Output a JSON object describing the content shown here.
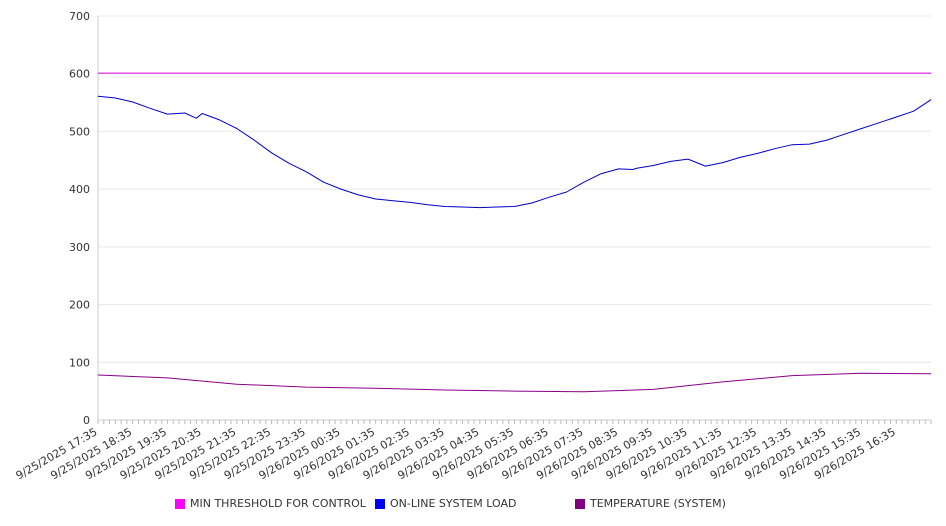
{
  "chart_data": {
    "type": "line",
    "title": "",
    "xlabel": "",
    "ylabel": "",
    "ylim": [
      0,
      700
    ],
    "y_ticks": [
      0,
      100,
      200,
      300,
      400,
      500,
      600,
      700
    ],
    "grid": true,
    "legend_position": "bottom",
    "x_tick_labels": [
      "9/25/2025 17:35",
      "9/25/2025 18:35",
      "9/25/2025 19:35",
      "9/25/2025 20:35",
      "9/25/2025 21:35",
      "9/25/2025 22:35",
      "9/25/2025 23:35",
      "9/26/2025 00:35",
      "9/26/2025 01:35",
      "9/26/2025 02:35",
      "9/26/2025 03:35",
      "9/26/2025 04:35",
      "9/26/2025 05:35",
      "9/26/2025 06:35",
      "9/26/2025 07:35",
      "9/26/2025 08:35",
      "9/26/2025 09:35",
      "9/26/2025 10:35",
      "9/26/2025 11:35",
      "9/26/2025 12:35",
      "9/26/2025 13:35",
      "9/26/2025 14:35",
      "9/26/2025 15:35",
      "9/26/2025 16:35"
    ],
    "series": [
      {
        "name": "MIN THRESHOLD FOR CONTROL",
        "color": "#dd00dd",
        "legend_color": "#ff00ff",
        "x": [
          "9/25/2025 17:35",
          "9/26/2025 17:35"
        ],
        "values": [
          601,
          601
        ]
      },
      {
        "name": "ON-LINE SYSTEM LOAD",
        "color": "#0000cc",
        "legend_color": "#0000ff",
        "x": [
          "9/25/2025 17:35",
          "9/25/2025 18:05",
          "9/25/2025 18:35",
          "9/25/2025 19:05",
          "9/25/2025 19:35",
          "9/25/2025 20:05",
          "9/25/2025 20:25",
          "9/25/2025 20:35",
          "9/25/2025 21:05",
          "9/25/2025 21:35",
          "9/25/2025 22:05",
          "9/25/2025 22:35",
          "9/25/2025 23:05",
          "9/25/2025 23:35",
          "9/26/2025 00:05",
          "9/26/2025 00:35",
          "9/26/2025 01:05",
          "9/26/2025 01:35",
          "9/26/2025 02:05",
          "9/26/2025 02:35",
          "9/26/2025 03:05",
          "9/26/2025 03:35",
          "9/26/2025 04:05",
          "9/26/2025 04:35",
          "9/26/2025 05:05",
          "9/26/2025 05:35",
          "9/26/2025 06:05",
          "9/26/2025 06:35",
          "9/26/2025 07:05",
          "9/26/2025 07:35",
          "9/26/2025 08:05",
          "9/26/2025 08:35",
          "9/26/2025 09:00",
          "9/26/2025 09:05",
          "9/26/2025 09:35",
          "9/26/2025 10:05",
          "9/26/2025 10:35",
          "9/26/2025 11:05",
          "9/26/2025 11:35",
          "9/26/2025 12:05",
          "9/26/2025 12:35",
          "9/26/2025 13:05",
          "9/26/2025 13:35",
          "9/26/2025 14:05",
          "9/26/2025 14:35",
          "9/26/2025 15:05",
          "9/26/2025 15:35",
          "9/26/2025 16:05",
          "9/26/2025 16:35",
          "9/26/2025 17:05",
          "9/26/2025 17:35"
        ],
        "values": [
          561,
          558,
          551,
          540,
          530,
          532,
          523,
          531,
          520,
          505,
          485,
          463,
          445,
          430,
          412,
          400,
          390,
          383,
          380,
          377,
          373,
          370,
          369,
          368,
          369,
          370,
          376,
          386,
          395,
          412,
          427,
          435,
          434,
          436,
          441,
          448,
          452,
          440,
          446,
          455,
          462,
          470,
          477,
          478,
          485,
          495,
          505,
          515,
          525,
          535,
          555
        ]
      },
      {
        "name": "TEMPERATURE (SYSTEM)",
        "color": "#8b008b",
        "legend_color": "#800080",
        "x": [
          "9/25/2025 17:35",
          "9/25/2025 19:35",
          "9/25/2025 21:35",
          "9/25/2025 23:35",
          "9/26/2025 01:35",
          "9/26/2025 03:35",
          "9/26/2025 05:35",
          "9/26/2025 07:35",
          "9/26/2025 09:35",
          "9/26/2025 11:35",
          "9/26/2025 13:35",
          "9/26/2025 15:35",
          "9/26/2025 17:35"
        ],
        "values": [
          78,
          73,
          62,
          57,
          55,
          52,
          50,
          49,
          53,
          66,
          77,
          81,
          80
        ]
      }
    ]
  }
}
